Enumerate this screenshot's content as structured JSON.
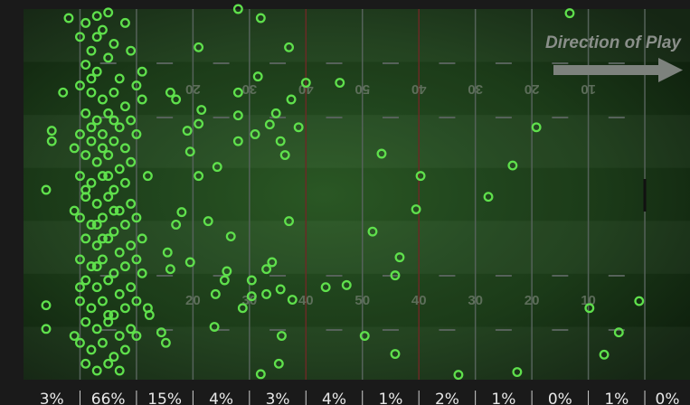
{
  "chart_data": {
    "type": "scatter",
    "annotation": "Direction of Play",
    "xlim": [
      -10,
      108
    ],
    "ylim": [
      0,
      53.3
    ],
    "xticks": [
      20,
      30,
      40,
      50,
      {
        "value": 60,
        "label": "40"
      },
      {
        "value": 70,
        "label": "30"
      },
      {
        "value": 80,
        "label": "20"
      },
      {
        "value": 90,
        "label": "10"
      }
    ],
    "color": "#5fe04c",
    "x": [
      -6,
      -5,
      -5,
      -6,
      -6,
      -3,
      -2,
      21,
      28,
      32,
      37,
      31.5,
      28,
      40,
      46,
      17,
      16,
      21.5,
      21,
      19,
      28,
      28,
      31,
      33.6,
      35.5,
      38.7,
      37.4,
      34.7,
      19.5,
      24.3,
      21,
      36.3,
      53.4,
      60.3,
      76.6,
      72.3,
      80.8,
      86.7,
      59.5,
      18,
      17,
      22.7,
      26.7,
      37,
      51.8,
      56.6,
      55.8,
      19.5,
      16,
      15.5,
      26,
      25.6,
      33,
      34,
      30.4,
      43.5,
      47.2,
      24,
      30.4,
      33,
      35.5,
      37.6,
      28.8,
      23.8,
      50.4,
      35.7,
      35.2,
      32,
      55.8,
      67,
      77.4,
      90.2,
      95.4,
      92.8,
      99,
      15.2,
      14.4,
      12.3,
      1,
      3,
      5,
      0,
      2,
      4,
      6,
      8,
      1,
      3,
      5,
      7,
      9,
      0,
      2,
      4,
      6,
      8,
      10,
      1,
      3,
      5,
      7,
      9,
      11,
      0,
      2,
      4,
      6,
      8,
      10,
      1,
      3,
      5,
      7,
      9,
      0,
      2,
      4,
      6,
      8,
      1,
      3,
      5,
      7,
      9,
      0,
      2,
      4,
      6,
      8,
      10,
      1,
      3,
      5,
      7,
      9,
      11,
      0,
      2,
      4,
      6,
      8,
      10,
      1,
      3,
      5,
      7,
      9,
      0,
      2,
      4,
      6,
      8,
      10,
      1,
      3,
      5,
      7,
      9,
      0,
      2,
      4,
      6,
      8,
      1,
      3,
      5,
      7,
      2,
      4,
      6,
      3,
      5,
      2,
      1,
      4,
      6,
      3,
      0,
      -1,
      -1,
      -1,
      11,
      12,
      11,
      10,
      12,
      5,
      3
    ],
    "y": [
      26,
      17.5,
      19,
      42.6,
      46,
      12,
      1.3,
      5.5,
      0,
      1.3,
      5.5,
      9.7,
      12,
      10.6,
      10.6,
      13,
      12,
      14.5,
      16.5,
      17.5,
      15.3,
      19,
      18,
      16.6,
      19,
      17,
      13,
      15,
      20.5,
      22.7,
      24,
      21,
      20.8,
      24,
      22.5,
      27,
      17,
      0.6,
      28.8,
      29.2,
      31,
      30.5,
      32.7,
      30.5,
      32,
      35.7,
      38.3,
      36.4,
      37.4,
      35,
      37.7,
      39,
      37.4,
      36.4,
      39,
      40,
      39.7,
      41,
      41.3,
      41,
      40.3,
      41.8,
      43,
      45.7,
      47,
      47,
      51,
      52.5,
      49.6,
      52.6,
      52.2,
      43,
      46.5,
      49.7,
      42,
      48,
      46.5,
      44,
      2,
      1,
      0.5,
      4,
      6,
      3,
      5,
      2,
      8,
      9,
      7,
      10,
      6,
      11,
      12,
      13,
      12,
      14,
      11,
      15,
      16,
      15,
      17,
      16,
      13,
      18,
      19,
      18,
      19,
      20,
      18,
      21,
      22,
      21,
      23,
      22,
      24,
      25,
      24,
      26,
      25,
      27,
      28,
      27,
      29,
      28,
      30,
      31,
      30,
      32,
      31,
      30,
      33,
      34,
      33,
      35,
      34,
      33,
      36,
      37,
      36,
      38,
      37,
      36,
      39,
      40,
      39,
      41,
      40,
      42,
      43,
      42,
      44,
      43,
      42,
      45,
      46,
      45,
      47,
      46,
      48,
      49,
      48,
      50,
      49,
      51,
      52,
      51,
      52,
      10,
      20,
      29,
      37,
      44,
      17,
      26,
      33,
      16,
      4,
      40,
      47,
      29,
      20,
      38,
      24,
      9,
      47,
      43,
      24,
      31
    ],
    "zone_shares": [
      3,
      66,
      15,
      4,
      3,
      4,
      1,
      2,
      1,
      0,
      1,
      0
    ],
    "zone_share_labels": [
      "3%",
      "66%",
      "15%",
      "4%",
      "3%",
      "4%",
      "1%",
      "2%",
      "1%",
      "0%",
      "1%",
      "0%"
    ]
  }
}
